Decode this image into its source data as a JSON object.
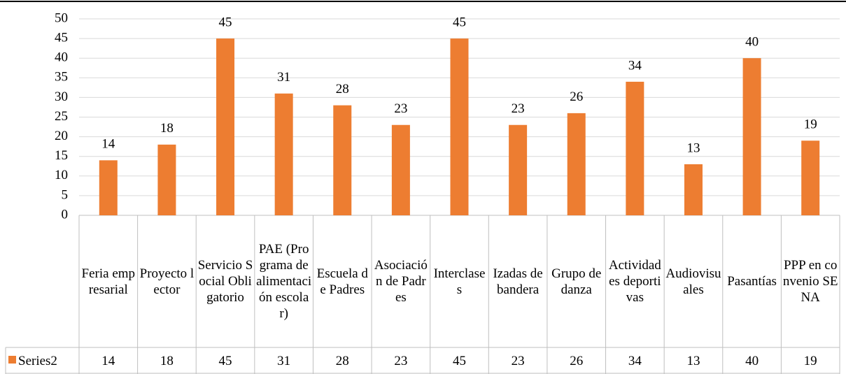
{
  "chart_data": {
    "type": "bar",
    "categories": [
      "Feria empresarial",
      "Proyecto lector",
      "Servicio Social Obligatorio",
      "PAE (Programa de alimentación escolar)",
      "Escuela de Padres",
      "Asociación de Padres",
      "Interclases",
      "Izadas de bandera",
      "Grupo de danza",
      "Actividades deportivas",
      "Audiovisuales",
      "Pasantías",
      "PPP en convenio SENA"
    ],
    "series": [
      {
        "name": "Series2",
        "color": "#ED7D31",
        "values": [
          14,
          18,
          45,
          31,
          28,
          23,
          45,
          23,
          26,
          34,
          13,
          40,
          19
        ]
      }
    ],
    "ylim": [
      0,
      50
    ],
    "yticks": [
      0,
      5,
      10,
      15,
      20,
      25,
      30,
      35,
      40,
      45,
      50
    ],
    "grid": true
  }
}
